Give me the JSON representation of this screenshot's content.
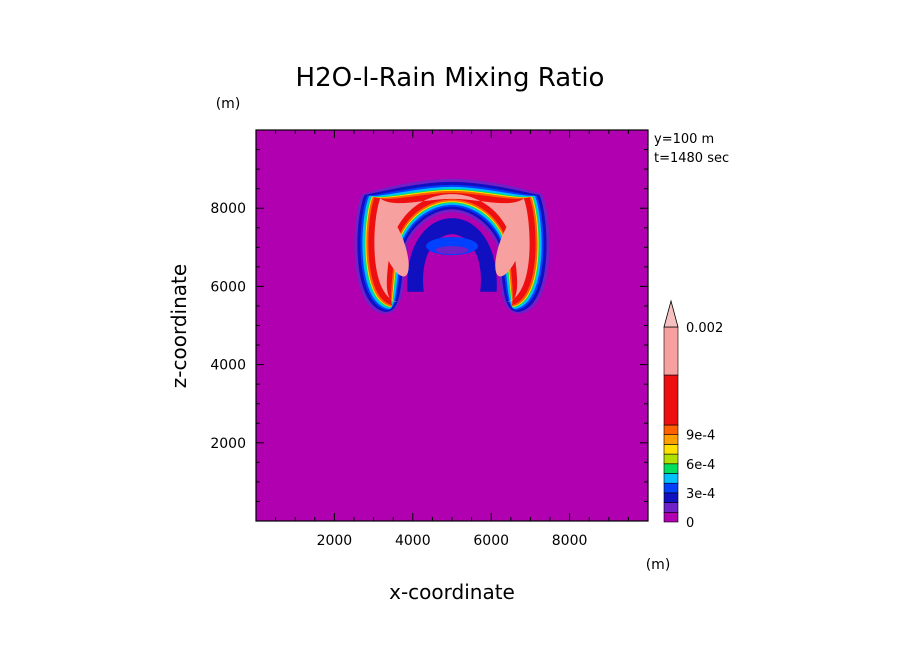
{
  "chart_data": {
    "type": "heatmap",
    "title": "H2O-l-Rain Mixing Ratio",
    "xlabel": "x-coordinate",
    "ylabel": "z-coordinate",
    "x_unit": "(m)",
    "y_unit": "(m)",
    "annotation_lines": [
      "y=100 m",
      "t=1480 sec"
    ],
    "xlim": [
      0,
      10000
    ],
    "ylim": [
      0,
      10000
    ],
    "xticks": [
      2000,
      4000,
      6000,
      8000
    ],
    "yticks": [
      2000,
      4000,
      6000,
      8000
    ],
    "background_color": "#b000b0",
    "field": {
      "center_x": 5000,
      "shell_outer_top_z": 8750,
      "shell_outer_half_width": 2500,
      "shell_bottom_z": 5300,
      "inner_cavity_top_z": 7900,
      "inner_cavity_half_width": 1200,
      "max_value_region": "0.002"
    },
    "colorbar": {
      "levels": [
        0,
        0.0001,
        0.0002,
        0.0003,
        0.0004,
        0.0005,
        0.0006,
        0.0007,
        0.0008,
        0.0009,
        0.001,
        0.0015,
        0.002
      ],
      "colors": [
        "#b000b0",
        "#7020c8",
        "#1010c0",
        "#0040ff",
        "#00c0ff",
        "#00e060",
        "#b0e000",
        "#ffe000",
        "#ffa000",
        "#ff6000",
        "#ee1010",
        "#f7a0a0",
        "#f7c0c0"
      ],
      "tick_labels": [
        {
          "value": 0,
          "label": "0"
        },
        {
          "value": 0.0003,
          "label": "3e-4"
        },
        {
          "value": 0.0006,
          "label": "6e-4"
        },
        {
          "value": 0.0009,
          "label": "9e-4"
        },
        {
          "value": 0.002,
          "label": "0.002"
        }
      ],
      "extend": "max"
    }
  }
}
